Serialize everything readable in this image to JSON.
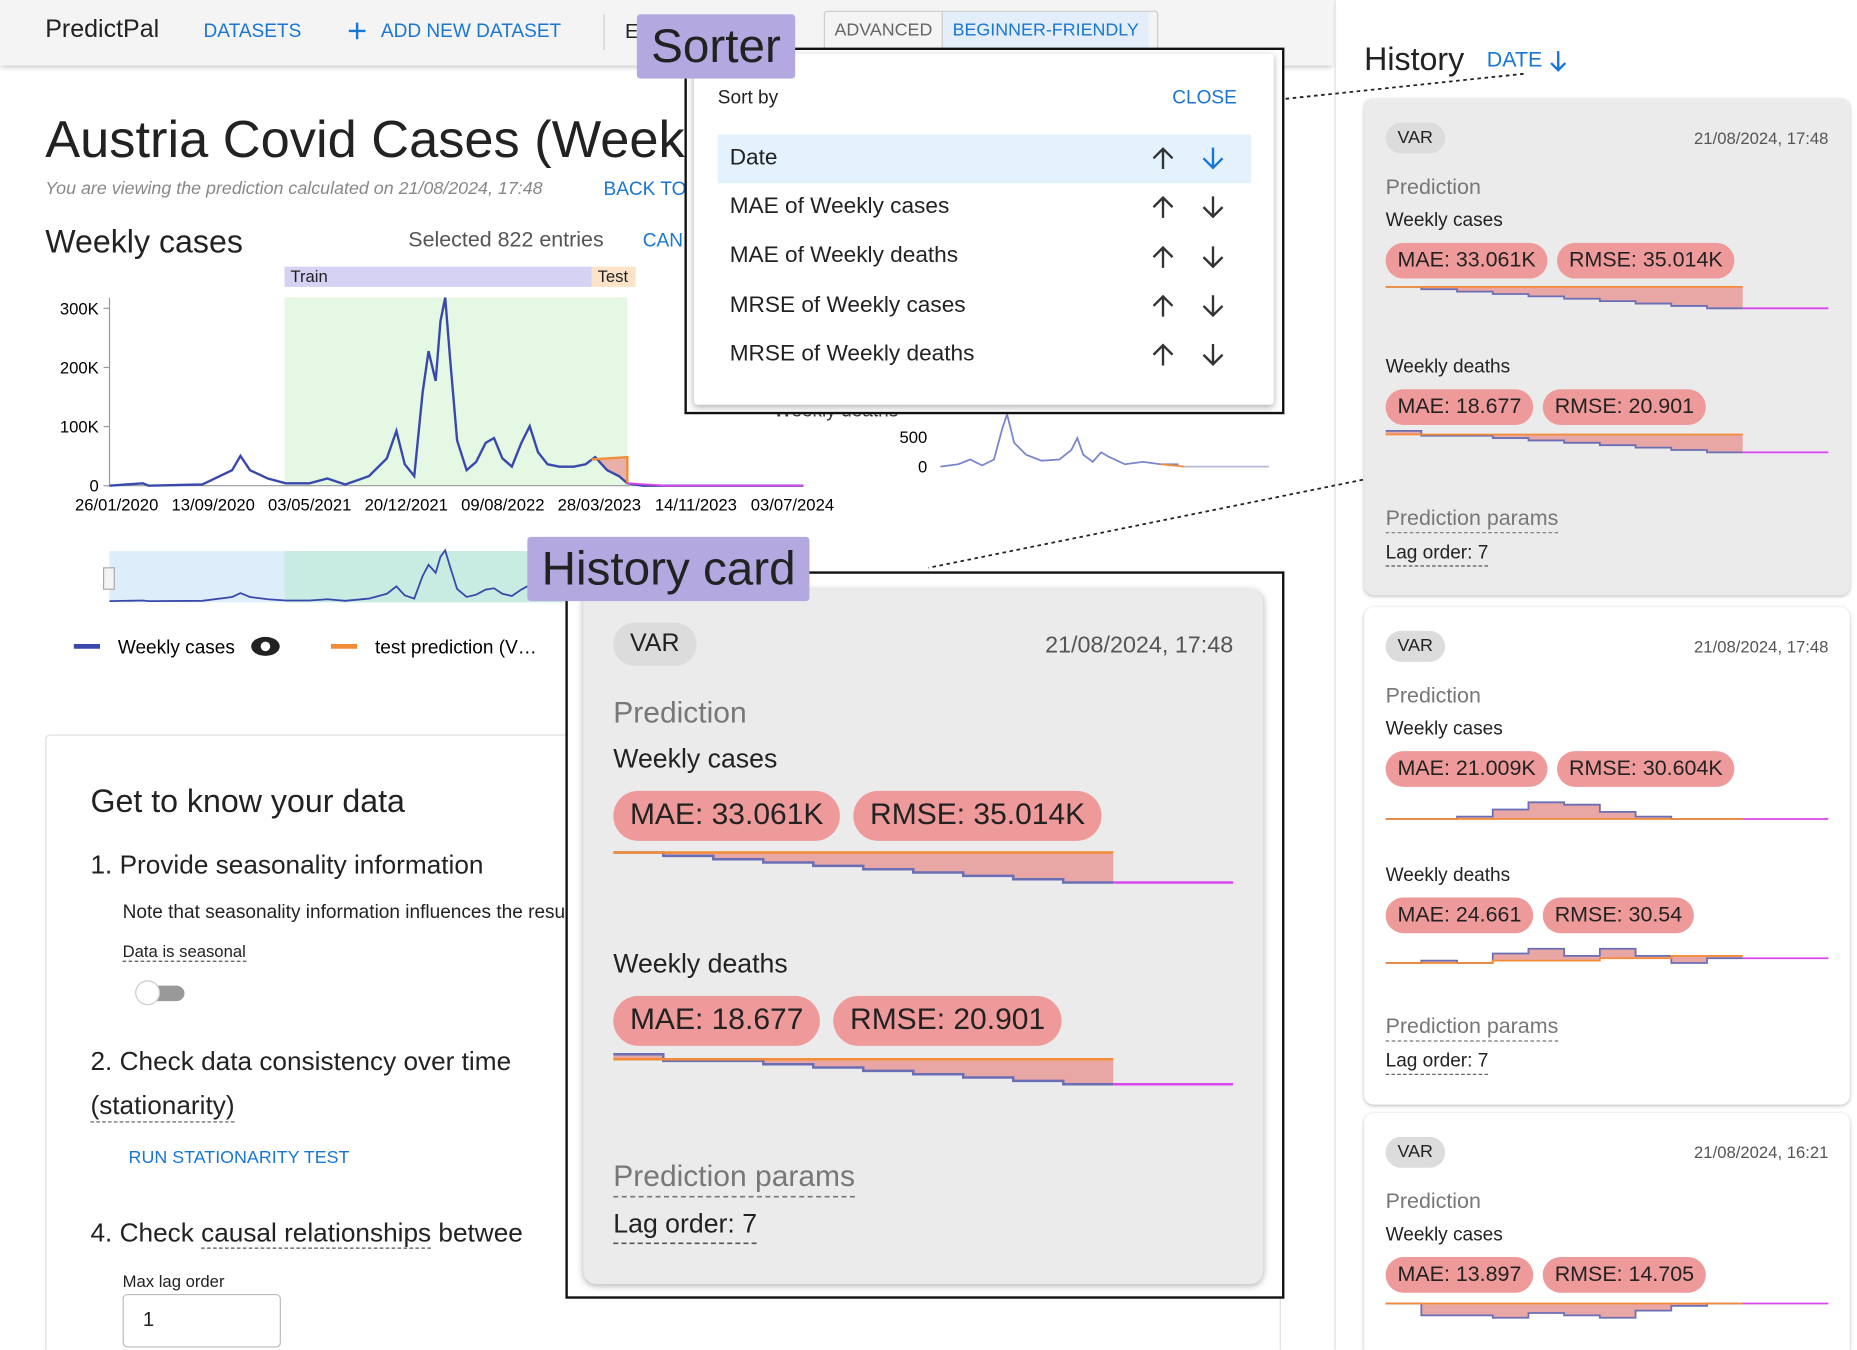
{
  "nav": {
    "brand": "PredictPal",
    "datasets": "DATASETS",
    "add": "ADD NEW DATASET",
    "cut": "E",
    "modes": [
      "ADVANCED",
      "BEGINNER-FRIENDLY"
    ]
  },
  "dataset": {
    "title": "Austria Covid Cases (Week",
    "note": "You are viewing the prediction calculated on 21/08/2024, 17:48",
    "back": "BACK TO"
  },
  "chart": {
    "title": "Weekly cases",
    "selected": "Selected 822 entries",
    "cancel": "CAN",
    "train": "Train",
    "test": "Test",
    "yticks": [
      "300K",
      "200K",
      "100K",
      "0"
    ],
    "xticks": [
      "26/01/2020",
      "13/09/2020",
      "03/05/2021",
      "20/12/2021",
      "09/08/2022",
      "28/03/2023",
      "14/11/2023",
      "03/07/2024"
    ],
    "legend": [
      "Weekly cases",
      "test prediction (V…"
    ],
    "deaths_title": "Weekly deaths",
    "deaths_yticks": [
      "500",
      "0"
    ]
  },
  "know": {
    "title": "Get to know your data",
    "step1": "1. Provide seasonality information",
    "note": "Note that seasonality information influences the resu",
    "seasonal": "Data is seasonal",
    "step2": "2. Check data consistency over time",
    "step2b": "(stationarity)",
    "run": "RUN STATIONARITY TEST",
    "step4a": "4. Check ",
    "step4link": "causal relationships",
    "step4b": " betwee",
    "maxlag": "Max lag order",
    "maxlag_value": "1"
  },
  "sorter": {
    "label": "Sort by",
    "close": "CLOSE",
    "options": [
      "Date",
      "MAE of Weekly cases",
      "MAE of Weekly deaths",
      "MRSE of Weekly cases",
      "MRSE of Weekly deaths"
    ]
  },
  "history": {
    "title": "History",
    "sort": "DATE",
    "prediction_label": "Prediction",
    "params_label": "Prediction params",
    "cards": [
      {
        "model": "VAR",
        "date": "21/08/2024, 17:48",
        "metrics": [
          {
            "name": "Weekly cases",
            "mae": "MAE: 33.061K",
            "rmse": "RMSE: 35.014K"
          },
          {
            "name": "Weekly deaths",
            "mae": "MAE: 18.677",
            "rmse": "RMSE: 20.901"
          }
        ],
        "lag": "Lag order: 7"
      },
      {
        "model": "VAR",
        "date": "21/08/2024, 17:48",
        "metrics": [
          {
            "name": "Weekly cases",
            "mae": "MAE: 21.009K",
            "rmse": "RMSE: 30.604K"
          },
          {
            "name": "Weekly deaths",
            "mae": "MAE: 24.661",
            "rmse": "RMSE: 30.54"
          }
        ],
        "lag": "Lag order: 7"
      },
      {
        "model": "VAR",
        "date": "21/08/2024, 16:21",
        "metrics": [
          {
            "name": "Weekly cases",
            "mae": "MAE: 13.897",
            "rmse": "RMSE: 14.705"
          }
        ]
      }
    ]
  },
  "callouts": {
    "sorter": "Sorter",
    "card": "History card"
  }
}
